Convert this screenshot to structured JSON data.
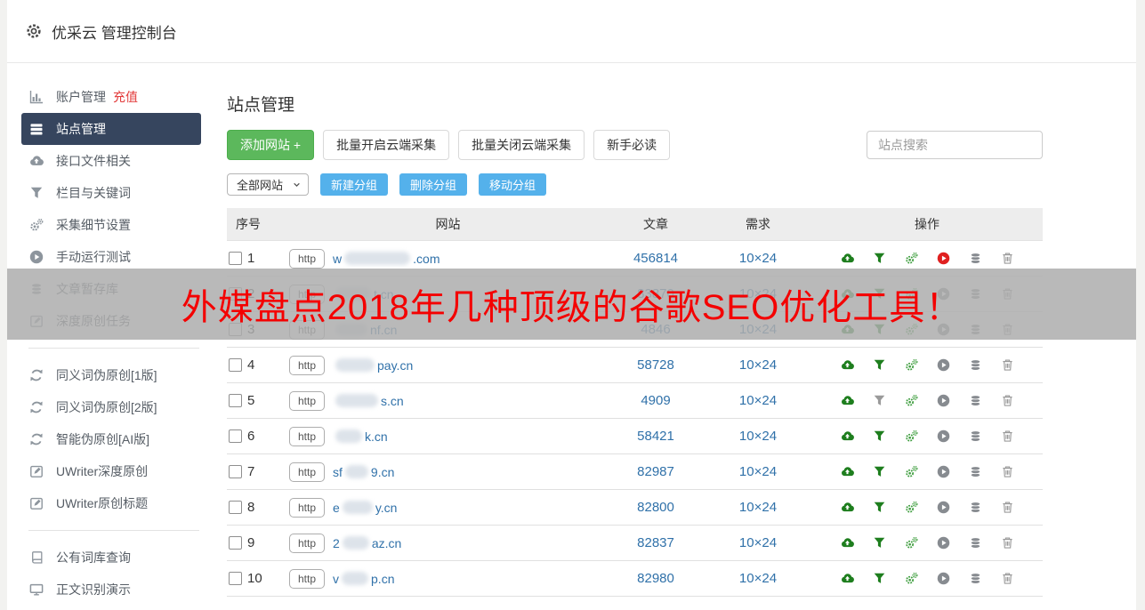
{
  "header": {
    "title": "优采云 管理控制台"
  },
  "sidebar": {
    "items": [
      {
        "icon": "chart",
        "label": "账户管理",
        "extra": "充值"
      },
      {
        "icon": "list",
        "label": "站点管理",
        "active": true
      },
      {
        "icon": "cloud",
        "label": "接口文件相关"
      },
      {
        "icon": "funnel",
        "label": "栏目与关键词"
      },
      {
        "icon": "cogs",
        "label": "采集细节设置"
      },
      {
        "icon": "play",
        "label": "手动运行测试"
      },
      {
        "icon": "db",
        "label": "文章暂存库"
      },
      {
        "icon": "edit",
        "label": "深度原创任务"
      },
      {
        "divider": true
      },
      {
        "icon": "refresh",
        "label": "同义词伪原创[1版]"
      },
      {
        "icon": "refresh",
        "label": "同义词伪原创[2版]"
      },
      {
        "icon": "refresh",
        "label": "智能伪原创[AI版]"
      },
      {
        "icon": "edit",
        "label": "UWriter深度原创"
      },
      {
        "icon": "edit",
        "label": "UWriter原创标题"
      },
      {
        "divider": true
      },
      {
        "icon": "book",
        "label": "公有词库查询"
      },
      {
        "icon": "monitor",
        "label": "正文识别演示"
      }
    ]
  },
  "main": {
    "page_title": "站点管理",
    "toolbar": {
      "add_site": "添加网站 +",
      "batch_open": "批量开启云端采集",
      "batch_close": "批量关闭云端采集",
      "newbie_guide": "新手必读",
      "search_placeholder": "站点搜索"
    },
    "groupbar": {
      "select_value": "全部网站",
      "new_group": "新建分组",
      "delete_group": "删除分组",
      "move_group": "移动分组"
    },
    "table": {
      "headers": [
        "序号",
        "网站",
        "文章",
        "需求",
        "操作"
      ],
      "scheme_label": "http",
      "rows": [
        {
          "num": "1",
          "domain_prefix": "w",
          "domain_suffix": ".com",
          "blur_w": 74,
          "articles": "456814",
          "demand": "10×24",
          "filter": "on",
          "play": "on"
        },
        {
          "num": "2",
          "domain_prefix": "",
          "domain_suffix": "t.cn",
          "blur_w": 40,
          "articles": "83870",
          "demand": "10×24",
          "filter": "on",
          "play": "off"
        },
        {
          "num": "3",
          "domain_prefix": "",
          "domain_suffix": "nf.cn",
          "blur_w": 36,
          "articles": "4846",
          "demand": "10×24",
          "filter": "on",
          "play": "off"
        },
        {
          "num": "4",
          "domain_prefix": "",
          "domain_suffix": "pay.cn",
          "blur_w": 44,
          "articles": "58728",
          "demand": "10×24",
          "filter": "on",
          "play": "off"
        },
        {
          "num": "5",
          "domain_prefix": "",
          "domain_suffix": "s.cn",
          "blur_w": 48,
          "articles": "4909",
          "demand": "10×24",
          "filter": "off",
          "play": "off"
        },
        {
          "num": "6",
          "domain_prefix": "",
          "domain_suffix": "k.cn",
          "blur_w": 30,
          "articles": "58421",
          "demand": "10×24",
          "filter": "on",
          "play": "off"
        },
        {
          "num": "7",
          "domain_prefix": "sf",
          "domain_suffix": "9.cn",
          "blur_w": 26,
          "articles": "82987",
          "demand": "10×24",
          "filter": "on",
          "play": "off"
        },
        {
          "num": "8",
          "domain_prefix": "e",
          "domain_suffix": "y.cn",
          "blur_w": 34,
          "articles": "82800",
          "demand": "10×24",
          "filter": "on",
          "play": "off"
        },
        {
          "num": "9",
          "domain_prefix": "2",
          "domain_suffix": "az.cn",
          "blur_w": 30,
          "articles": "82837",
          "demand": "10×24",
          "filter": "on",
          "play": "off"
        },
        {
          "num": "10",
          "domain_prefix": "v",
          "domain_suffix": "p.cn",
          "blur_w": 30,
          "articles": "82980",
          "demand": "10×24",
          "filter": "on",
          "play": "off"
        }
      ]
    }
  },
  "banner": {
    "text": "外媒盘点2018年几种顶级的谷歌SEO优化工具！"
  },
  "colors": {
    "accent_green": "#5cb85c",
    "accent_blue": "#54b1eb",
    "link_blue": "#3071a9",
    "sidebar_active_bg": "#36455e",
    "banner_red": "#f40000",
    "icon_green": "#1e7e1e",
    "icon_green_light": "#3f9e3f",
    "icon_red": "#e02020",
    "icon_gray": "#9a9a9a",
    "recharge_red": "#e23b3b"
  }
}
